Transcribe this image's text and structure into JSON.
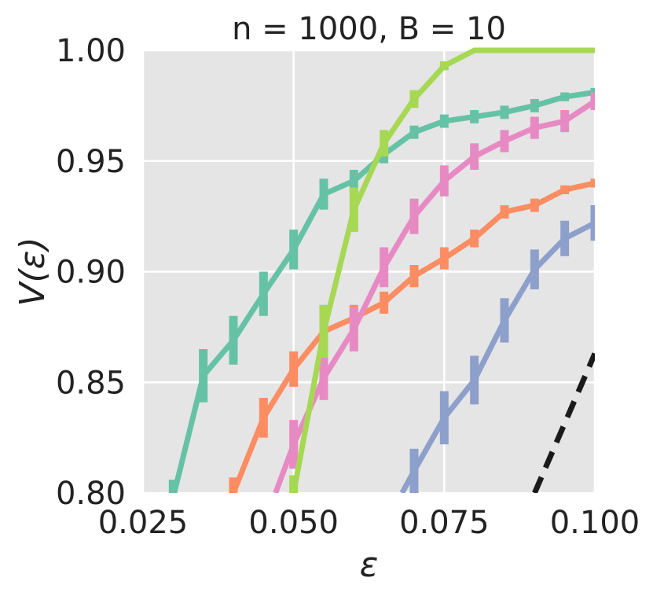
{
  "chart_data": {
    "type": "line",
    "title": "n = 1000, B = 10",
    "xlabel": "ε",
    "ylabel": "V(ε)",
    "xlim": [
      0.025,
      0.1
    ],
    "ylim": [
      0.8,
      1.0
    ],
    "xticks": [
      "0.025",
      "0.050",
      "0.075",
      "0.100"
    ],
    "yticks": [
      "0.80",
      "0.85",
      "0.90",
      "0.95",
      "1.00"
    ],
    "grid": true,
    "legend": "none",
    "background": "#e5e5e5",
    "series": [
      {
        "color": "#66c2a5",
        "x": [
          0.03,
          0.035,
          0.04,
          0.045,
          0.05,
          0.055,
          0.06,
          0.065,
          0.07,
          0.075,
          0.08,
          0.085,
          0.09,
          0.095,
          0.1
        ],
        "y": [
          0.798,
          0.853,
          0.869,
          0.89,
          0.91,
          0.935,
          0.941,
          0.953,
          0.963,
          0.968,
          0.97,
          0.972,
          0.975,
          0.979,
          0.981
        ],
        "err": [
          0.008,
          0.012,
          0.011,
          0.01,
          0.009,
          0.007,
          0.005,
          0.004,
          0.003,
          0.003,
          0.003,
          0.003,
          0.003,
          0.002,
          0.002
        ]
      },
      {
        "color": "#fc8d62",
        "x": [
          0.04,
          0.045,
          0.05,
          0.055,
          0.06,
          0.065,
          0.07,
          0.075,
          0.08,
          0.085,
          0.09,
          0.095,
          0.1
        ],
        "y": [
          0.8,
          0.834,
          0.856,
          0.873,
          0.879,
          0.886,
          0.898,
          0.906,
          0.915,
          0.927,
          0.93,
          0.937,
          0.94
        ],
        "err": [
          0.007,
          0.009,
          0.008,
          0.007,
          0.006,
          0.005,
          0.005,
          0.005,
          0.004,
          0.003,
          0.003,
          0.002,
          0.002
        ]
      },
      {
        "color": "#8da0cb",
        "x": [
          0.068,
          0.07,
          0.075,
          0.08,
          0.085,
          0.09,
          0.095,
          0.1
        ],
        "y": [
          0.8,
          0.81,
          0.834,
          0.851,
          0.878,
          0.901,
          0.915,
          0.922
        ],
        "err": [
          0.0,
          0.01,
          0.012,
          0.011,
          0.01,
          0.009,
          0.008,
          0.008
        ]
      },
      {
        "color": "#e78ac3",
        "x": [
          0.047,
          0.05,
          0.055,
          0.06,
          0.065,
          0.07,
          0.075,
          0.08,
          0.085,
          0.09,
          0.095,
          0.1
        ],
        "y": [
          0.8,
          0.822,
          0.852,
          0.874,
          0.902,
          0.925,
          0.941,
          0.952,
          0.959,
          0.965,
          0.968,
          0.977
        ],
        "err": [
          0.0,
          0.011,
          0.01,
          0.01,
          0.009,
          0.008,
          0.007,
          0.006,
          0.005,
          0.005,
          0.005,
          0.004
        ]
      },
      {
        "color": "#a6d854",
        "x": [
          0.05,
          0.055,
          0.06,
          0.065,
          0.07,
          0.075,
          0.08,
          0.085,
          0.09,
          0.095,
          0.1
        ],
        "y": [
          0.8,
          0.873,
          0.928,
          0.958,
          0.978,
          0.993,
          1.0,
          1.0,
          1.0,
          1.0,
          1.0
        ],
        "err": [
          0.008,
          0.012,
          0.01,
          0.006,
          0.004,
          0.002,
          0.0,
          0.0,
          0.0,
          0.0,
          0.0
        ]
      },
      {
        "color": "#1a1a1a",
        "dashed": true,
        "x": [
          0.09,
          0.1
        ],
        "y": [
          0.8,
          0.863
        ],
        "err": []
      }
    ]
  }
}
